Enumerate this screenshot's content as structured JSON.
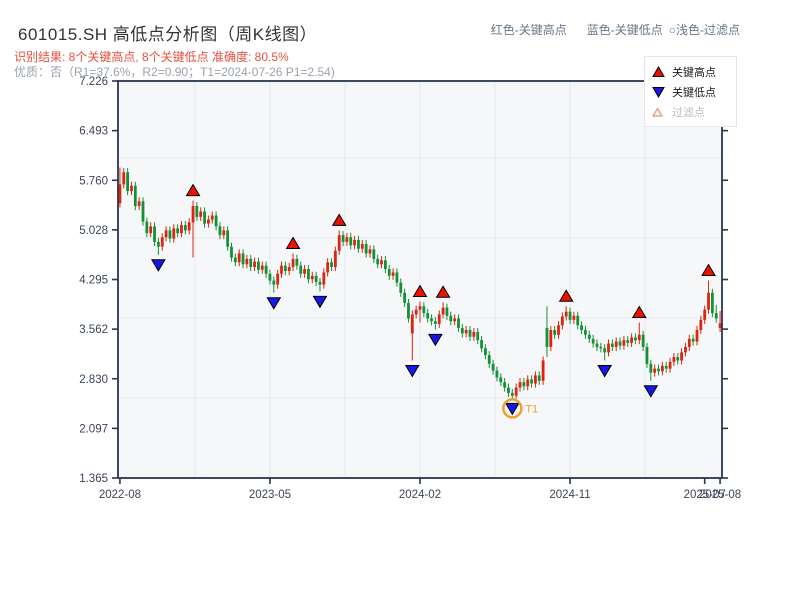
{
  "header": {
    "title": "601015.SH 高低点分析图（周K线图）",
    "recognition": "识别结果: 8个关键高点, 8个关键低点  准确度: 80.5%",
    "quality": "优质：否（R1=37.6%，R2=0.90；T1=2024-07-26 P1=2.54)",
    "top_legend": {
      "high": "红色-关键高点",
      "low": "蓝色-关键低点",
      "filter": "○浅色-过滤点"
    }
  },
  "legend": {
    "items": [
      {
        "label": "关键高点",
        "type": "key-high"
      },
      {
        "label": "关键低点",
        "type": "key-low"
      },
      {
        "label": "过滤点",
        "type": "filter"
      }
    ]
  },
  "colors": {
    "up_candle": "#dc2410",
    "down_candle": "#149138",
    "key_high_marker": "#ee1100",
    "key_low_marker": "#1717e8",
    "marker_edge": "#000000",
    "t1": "#f0a030",
    "plot_bg": "#f6f7f9",
    "grid": "#e4e8ee",
    "spine": "#2a3550",
    "tick_label": "#3c4557"
  },
  "chart_data": {
    "type": "candlestick",
    "symbol": "601015.SH",
    "period": "weekly",
    "title": "601015.SH 高低点分析图（周K线图）",
    "ylim": [
      1.365,
      7.226
    ],
    "y_ticks": [
      "7.226",
      "6.493",
      "5.760",
      "5.028",
      "4.295",
      "3.562",
      "2.830",
      "2.097",
      "1.365"
    ],
    "x_ticks": [
      {
        "week": 0,
        "label": "2022-08"
      },
      {
        "week": 39,
        "label": "2023-05"
      },
      {
        "week": 78,
        "label": "2024-02"
      },
      {
        "week": 117,
        "label": "2024-11"
      },
      {
        "week": 152,
        "label": "2025-07"
      },
      {
        "week": 156,
        "label": "2025-08"
      }
    ],
    "hgrid_prices": [
      6.089,
      4.908,
      3.727,
      2.546
    ],
    "vgrid_weeks": [
      19.5,
      39,
      58.5,
      78,
      97.5,
      117,
      136.5
    ],
    "candles": [
      [
        5.42,
        5.95,
        5.36,
        5.7
      ],
      [
        5.7,
        5.94,
        5.64,
        5.88
      ],
      [
        5.88,
        5.94,
        5.54,
        5.6
      ],
      [
        5.6,
        5.74,
        5.54,
        5.68
      ],
      [
        5.68,
        5.74,
        5.32,
        5.38
      ],
      [
        5.38,
        5.51,
        5.32,
        5.45
      ],
      [
        5.45,
        5.51,
        5.09,
        5.15
      ],
      [
        5.15,
        5.21,
        4.92,
        4.98
      ],
      [
        4.98,
        5.14,
        4.92,
        5.08
      ],
      [
        5.08,
        5.14,
        4.79,
        4.85
      ],
      [
        4.85,
        4.91,
        4.66,
        4.78
      ],
      [
        4.78,
        4.98,
        4.72,
        4.92
      ],
      [
        4.92,
        5.08,
        4.86,
        5.02
      ],
      [
        5.02,
        5.08,
        4.84,
        4.9
      ],
      [
        4.9,
        5.11,
        4.84,
        5.05
      ],
      [
        5.05,
        5.11,
        4.92,
        4.98
      ],
      [
        4.98,
        5.16,
        4.92,
        5.1
      ],
      [
        5.1,
        5.16,
        4.96,
        5.02
      ],
      [
        5.02,
        5.2,
        4.96,
        5.14
      ],
      [
        5.14,
        5.46,
        4.62,
        5.38
      ],
      [
        5.38,
        5.44,
        5.16,
        5.22
      ],
      [
        5.22,
        5.36,
        5.16,
        5.3
      ],
      [
        5.3,
        5.36,
        5.06,
        5.12
      ],
      [
        5.12,
        5.24,
        5.06,
        5.18
      ],
      [
        5.18,
        5.3,
        5.12,
        5.24
      ],
      [
        5.24,
        5.3,
        5.02,
        5.08
      ],
      [
        5.08,
        5.14,
        4.89,
        4.95
      ],
      [
        4.95,
        5.08,
        4.89,
        5.02
      ],
      [
        5.02,
        5.08,
        4.72,
        4.78
      ],
      [
        4.78,
        4.84,
        4.56,
        4.62
      ],
      [
        4.62,
        4.68,
        4.49,
        4.55
      ],
      [
        4.55,
        4.74,
        4.49,
        4.68
      ],
      [
        4.68,
        4.74,
        4.46,
        4.52
      ],
      [
        4.52,
        4.66,
        4.46,
        4.6
      ],
      [
        4.6,
        4.66,
        4.42,
        4.48
      ],
      [
        4.48,
        4.62,
        4.42,
        4.56
      ],
      [
        4.56,
        4.62,
        4.38,
        4.44
      ],
      [
        4.44,
        4.56,
        4.38,
        4.5
      ],
      [
        4.5,
        4.56,
        4.32,
        4.38
      ],
      [
        4.38,
        4.44,
        4.22,
        4.28
      ],
      [
        4.28,
        4.34,
        4.1,
        4.22
      ],
      [
        4.22,
        4.44,
        4.16,
        4.38
      ],
      [
        4.38,
        4.56,
        4.32,
        4.5
      ],
      [
        4.5,
        4.56,
        4.36,
        4.42
      ],
      [
        4.42,
        4.54,
        4.36,
        4.48
      ],
      [
        4.48,
        4.68,
        4.42,
        4.6
      ],
      [
        4.6,
        4.66,
        4.44,
        4.5
      ],
      [
        4.5,
        4.56,
        4.32,
        4.38
      ],
      [
        4.38,
        4.51,
        4.32,
        4.45
      ],
      [
        4.45,
        4.51,
        4.24,
        4.3
      ],
      [
        4.3,
        4.41,
        4.24,
        4.35
      ],
      [
        4.35,
        4.41,
        4.2,
        4.26
      ],
      [
        4.26,
        4.32,
        4.12,
        4.22
      ],
      [
        4.22,
        4.46,
        4.16,
        4.4
      ],
      [
        4.4,
        4.61,
        4.34,
        4.55
      ],
      [
        4.55,
        4.61,
        4.42,
        4.48
      ],
      [
        4.48,
        4.78,
        4.42,
        4.72
      ],
      [
        4.72,
        5.02,
        4.66,
        4.95
      ],
      [
        4.95,
        5.01,
        4.79,
        4.85
      ],
      [
        4.85,
        4.98,
        4.79,
        4.92
      ],
      [
        4.92,
        4.98,
        4.74,
        4.8
      ],
      [
        4.8,
        4.94,
        4.74,
        4.88
      ],
      [
        4.88,
        4.94,
        4.69,
        4.75
      ],
      [
        4.75,
        4.88,
        4.69,
        4.82
      ],
      [
        4.82,
        4.88,
        4.62,
        4.68
      ],
      [
        4.68,
        4.8,
        4.62,
        4.74
      ],
      [
        4.74,
        4.8,
        4.54,
        4.6
      ],
      [
        4.6,
        4.66,
        4.46,
        4.52
      ],
      [
        4.52,
        4.64,
        4.46,
        4.58
      ],
      [
        4.58,
        4.64,
        4.39,
        4.45
      ],
      [
        4.45,
        4.51,
        4.29,
        4.35
      ],
      [
        4.35,
        4.46,
        4.29,
        4.4
      ],
      [
        4.4,
        4.46,
        4.19,
        4.25
      ],
      [
        4.25,
        4.31,
        4.04,
        4.1
      ],
      [
        4.1,
        4.16,
        3.89,
        3.95
      ],
      [
        3.95,
        4.01,
        3.66,
        3.72
      ],
      [
        3.5,
        3.84,
        3.1,
        3.78
      ],
      [
        3.78,
        3.91,
        3.72,
        3.85
      ],
      [
        3.85,
        3.97,
        3.66,
        3.9
      ],
      [
        3.9,
        3.96,
        3.74,
        3.8
      ],
      [
        3.8,
        3.86,
        3.66,
        3.72
      ],
      [
        3.72,
        3.78,
        3.62,
        3.68
      ],
      [
        3.68,
        3.74,
        3.56,
        3.64
      ],
      [
        3.64,
        3.84,
        3.58,
        3.78
      ],
      [
        3.78,
        3.96,
        3.72,
        3.88
      ],
      [
        3.88,
        3.94,
        3.7,
        3.76
      ],
      [
        3.76,
        3.82,
        3.62,
        3.68
      ],
      [
        3.68,
        3.78,
        3.62,
        3.72
      ],
      [
        3.72,
        3.78,
        3.52,
        3.58
      ],
      [
        3.58,
        3.64,
        3.44,
        3.5
      ],
      [
        3.5,
        3.61,
        3.44,
        3.55
      ],
      [
        3.55,
        3.61,
        3.39,
        3.45
      ],
      [
        3.45,
        3.58,
        3.39,
        3.52
      ],
      [
        3.52,
        3.58,
        3.34,
        3.4
      ],
      [
        3.4,
        3.46,
        3.22,
        3.28
      ],
      [
        3.28,
        3.34,
        3.12,
        3.18
      ],
      [
        3.18,
        3.24,
        2.99,
        3.05
      ],
      [
        3.05,
        3.11,
        2.89,
        2.95
      ],
      [
        2.95,
        3.01,
        2.79,
        2.85
      ],
      [
        2.85,
        2.91,
        2.72,
        2.78
      ],
      [
        2.78,
        2.84,
        2.64,
        2.7
      ],
      [
        2.7,
        2.76,
        2.56,
        2.62
      ],
      [
        2.62,
        2.68,
        2.54,
        2.58
      ],
      [
        2.58,
        2.76,
        2.54,
        2.7
      ],
      [
        2.7,
        2.84,
        2.64,
        2.78
      ],
      [
        2.78,
        2.84,
        2.66,
        2.72
      ],
      [
        2.72,
        2.88,
        2.66,
        2.82
      ],
      [
        2.82,
        2.88,
        2.7,
        2.76
      ],
      [
        2.76,
        2.94,
        2.7,
        2.88
      ],
      [
        2.88,
        2.94,
        2.74,
        2.8
      ],
      [
        2.8,
        3.16,
        2.74,
        3.1
      ],
      [
        3.58,
        3.9,
        3.15,
        3.3
      ],
      [
        3.3,
        3.61,
        3.24,
        3.55
      ],
      [
        3.55,
        3.61,
        3.42,
        3.48
      ],
      [
        3.48,
        3.68,
        3.42,
        3.62
      ],
      [
        3.62,
        3.81,
        3.56,
        3.75
      ],
      [
        3.75,
        3.9,
        3.69,
        3.82
      ],
      [
        3.82,
        3.88,
        3.64,
        3.7
      ],
      [
        3.7,
        3.82,
        3.64,
        3.76
      ],
      [
        3.76,
        3.82,
        3.56,
        3.62
      ],
      [
        3.62,
        3.68,
        3.49,
        3.55
      ],
      [
        3.55,
        3.61,
        3.42,
        3.48
      ],
      [
        3.48,
        3.54,
        3.36,
        3.42
      ],
      [
        3.42,
        3.48,
        3.29,
        3.35
      ],
      [
        3.35,
        3.41,
        3.24,
        3.3
      ],
      [
        3.3,
        3.36,
        3.22,
        3.28
      ],
      [
        3.28,
        3.34,
        3.1,
        3.22
      ],
      [
        3.22,
        3.41,
        3.16,
        3.35
      ],
      [
        3.35,
        3.41,
        3.24,
        3.3
      ],
      [
        3.3,
        3.44,
        3.24,
        3.38
      ],
      [
        3.38,
        3.44,
        3.26,
        3.32
      ],
      [
        3.32,
        3.46,
        3.26,
        3.4
      ],
      [
        3.4,
        3.46,
        3.3,
        3.36
      ],
      [
        3.36,
        3.5,
        3.3,
        3.44
      ],
      [
        3.44,
        3.5,
        3.34,
        3.4
      ],
      [
        3.4,
        3.66,
        3.34,
        3.48
      ],
      [
        3.48,
        3.54,
        3.24,
        3.3
      ],
      [
        3.3,
        3.36,
        2.99,
        3.05
      ],
      [
        3.05,
        3.11,
        2.8,
        2.92
      ],
      [
        2.92,
        3.04,
        2.86,
        2.98
      ],
      [
        2.98,
        3.04,
        2.88,
        2.94
      ],
      [
        2.94,
        3.08,
        2.88,
        3.02
      ],
      [
        3.02,
        3.08,
        2.92,
        2.98
      ],
      [
        2.98,
        3.14,
        2.92,
        3.08
      ],
      [
        3.08,
        3.21,
        3.02,
        3.15
      ],
      [
        3.15,
        3.21,
        3.04,
        3.1
      ],
      [
        3.1,
        3.28,
        3.04,
        3.22
      ],
      [
        3.22,
        3.36,
        3.16,
        3.3
      ],
      [
        3.3,
        3.48,
        3.24,
        3.42
      ],
      [
        3.42,
        3.48,
        3.32,
        3.38
      ],
      [
        3.38,
        3.61,
        3.32,
        3.55
      ],
      [
        3.55,
        3.76,
        3.49,
        3.7
      ],
      [
        3.7,
        3.91,
        3.64,
        3.85
      ],
      [
        3.85,
        4.28,
        3.79,
        4.1
      ],
      [
        4.1,
        4.16,
        3.74,
        3.8
      ],
      [
        3.8,
        3.92,
        3.66,
        3.72
      ],
      [
        3.58,
        3.83,
        3.52,
        3.65
      ]
    ],
    "key_highs": [
      {
        "week": 19,
        "price": 5.46
      },
      {
        "week": 45,
        "price": 4.68
      },
      {
        "week": 57,
        "price": 5.02
      },
      {
        "week": 78,
        "price": 3.97
      },
      {
        "week": 84,
        "price": 3.96
      },
      {
        "week": 116,
        "price": 3.9
      },
      {
        "week": 135,
        "price": 3.66
      },
      {
        "week": 153,
        "price": 4.28
      }
    ],
    "key_lows": [
      {
        "week": 10,
        "price": 4.66
      },
      {
        "week": 40,
        "price": 4.1
      },
      {
        "week": 52,
        "price": 4.12
      },
      {
        "week": 76,
        "price": 3.1
      },
      {
        "week": 82,
        "price": 3.56
      },
      {
        "week": 102,
        "price": 2.54
      },
      {
        "week": 126,
        "price": 3.1
      },
      {
        "week": 138,
        "price": 2.8
      }
    ],
    "t1": {
      "week": 102,
      "price": 2.54,
      "label": "T1",
      "date": "2024-07-26"
    }
  }
}
